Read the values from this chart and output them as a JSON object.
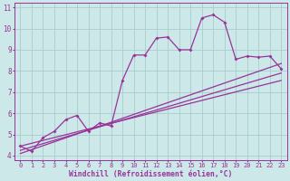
{
  "xlabel": "Windchill (Refroidissement éolien,°C)",
  "bg_color": "#cce8e8",
  "grid_color": "#aacccc",
  "line_color": "#993399",
  "xlim": [
    -0.5,
    23.5
  ],
  "ylim": [
    3.8,
    11.2
  ],
  "xticks": [
    0,
    1,
    2,
    3,
    4,
    5,
    6,
    7,
    8,
    9,
    10,
    11,
    12,
    13,
    14,
    15,
    16,
    17,
    18,
    19,
    20,
    21,
    22,
    23
  ],
  "yticks": [
    4,
    5,
    6,
    7,
    8,
    9,
    10,
    11
  ],
  "main_x": [
    0,
    1,
    2,
    3,
    4,
    5,
    6,
    7,
    8,
    9,
    10,
    11,
    12,
    13,
    14,
    15,
    16,
    17,
    18,
    19,
    20,
    21,
    22,
    23
  ],
  "main_y": [
    4.45,
    4.2,
    4.85,
    5.15,
    5.7,
    5.9,
    5.15,
    5.55,
    5.4,
    7.55,
    8.75,
    8.75,
    9.55,
    9.6,
    9.0,
    9.0,
    10.5,
    10.65,
    10.3,
    8.55,
    8.7,
    8.65,
    8.7,
    8.1
  ],
  "line1_x": [
    0,
    23
  ],
  "line1_y": [
    4.45,
    7.55
  ],
  "line2_x": [
    0,
    23
  ],
  "line2_y": [
    4.1,
    8.35
  ],
  "line3_x": [
    0,
    23
  ],
  "line3_y": [
    4.25,
    7.9
  ],
  "tick_fontsize": 5.5,
  "xlabel_fontsize": 5.8
}
